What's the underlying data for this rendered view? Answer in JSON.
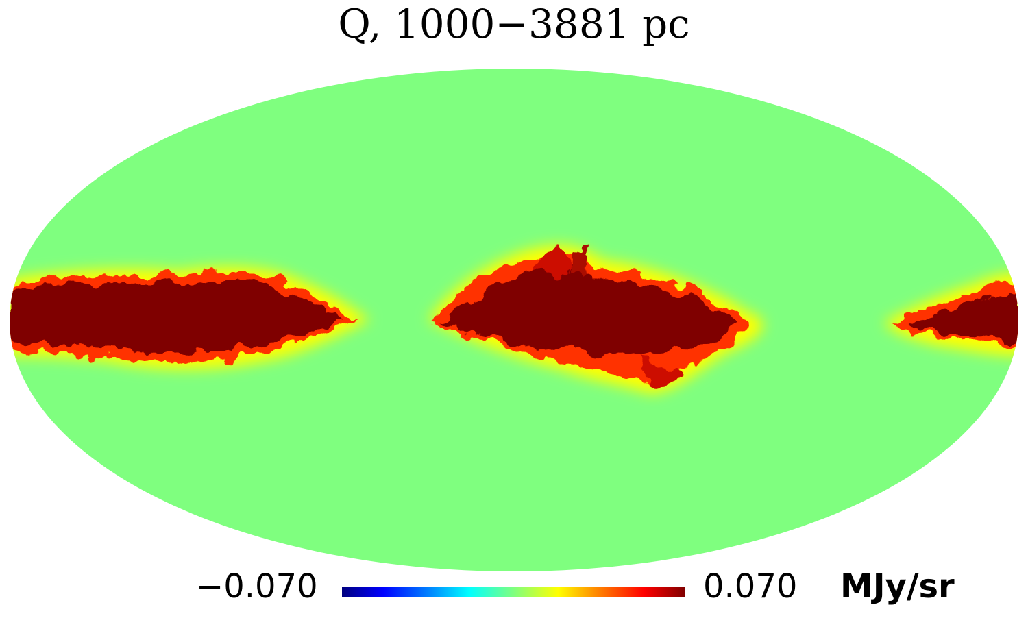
{
  "title": "Q, 1000−3881 pc",
  "colorbar": {
    "min_label": "−0.070",
    "max_label": "0.070",
    "unit": "MJy/sr",
    "min": -0.07,
    "max": 0.07,
    "colormap": "jet"
  },
  "map": {
    "projection": "mollweide",
    "quantity": "Stokes Q",
    "background_color": "#7fff7f",
    "saturated_color": "#7f0000",
    "features": [
      "galactic-plane-emission-left",
      "galactic-plane-emission-center",
      "galactic-plane-emission-right"
    ]
  }
}
